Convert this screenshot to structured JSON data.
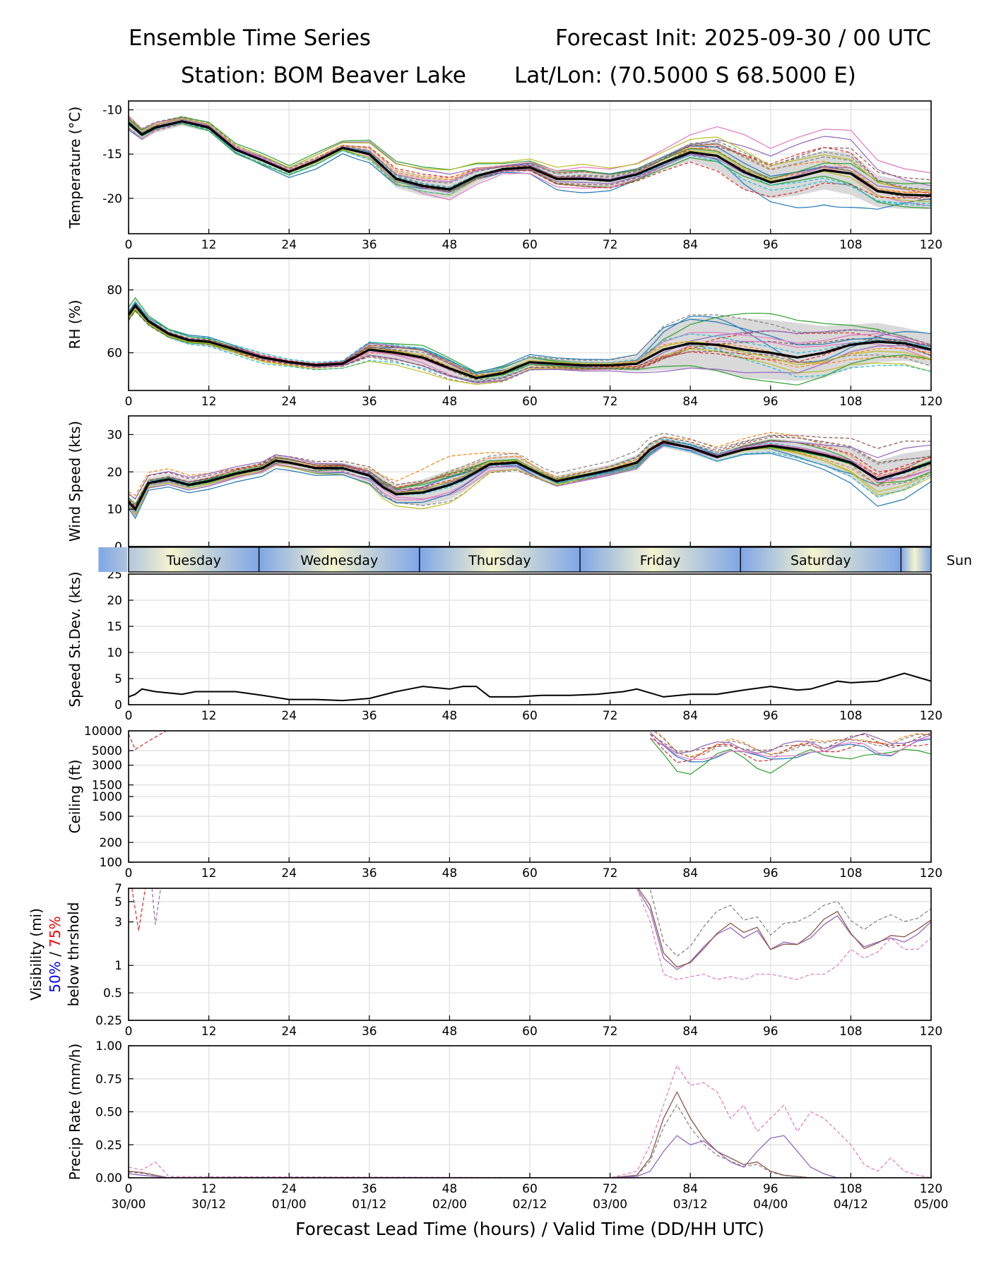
{
  "header": {
    "title_left": "Ensemble Time Series",
    "title_right": "Forecast Init: 2025-09-30 / 00 UTC",
    "station": "Station: BOM Beaver Lake",
    "latlon": "Lat/Lon: (70.5000 S 68.5000 E)"
  },
  "x_axis": {
    "label": "Forecast Lead Time (hours) / Valid Time (DD/HH UTC)",
    "hours": [
      0,
      12,
      24,
      36,
      48,
      60,
      72,
      84,
      96,
      108,
      120
    ],
    "valid_labels": [
      "30/00",
      "30/12",
      "01/00",
      "01/12",
      "02/00",
      "02/12",
      "03/00",
      "03/12",
      "04/00",
      "04/12",
      "05/00"
    ],
    "range": [
      0,
      120
    ]
  },
  "day_strip": {
    "days": [
      "Tuesday",
      "Wednesday",
      "Thursday",
      "Friday",
      "Saturday",
      "Sun"
    ],
    "boundaries_hours": [
      19.5,
      43.5,
      67.5,
      91.5,
      115.5
    ]
  },
  "colors": {
    "ensemble": [
      "#1f77b4",
      "#ff7f0e",
      "#2ca02c",
      "#d62728",
      "#9467bd",
      "#8c564b",
      "#e377c2",
      "#7f7f7f",
      "#bcbd22",
      "#17becf"
    ],
    "mean": "#000000",
    "spread": "#d9d9d9",
    "strip_blue": "#7fa6e6",
    "strip_cream": "#f5f3cf",
    "vis_50": "#0000ff",
    "vis_75": "#ff0000"
  },
  "chart_data": [
    {
      "type": "line",
      "ylabel": "Temperature (°C)",
      "ylim": [
        -24,
        -9
      ],
      "yticks": [
        -10,
        -15,
        -20
      ],
      "x": [
        0,
        2,
        4,
        8,
        12,
        16,
        20,
        24,
        28,
        32,
        36,
        40,
        44,
        48,
        52,
        56,
        60,
        64,
        68,
        72,
        76,
        80,
        84,
        88,
        92,
        96,
        100,
        104,
        108,
        112,
        116,
        120
      ],
      "mean": [
        -11.5,
        -12.8,
        -12.0,
        -11.3,
        -12.0,
        -14.5,
        -15.7,
        -17.0,
        -15.8,
        -14.3,
        -15.0,
        -17.8,
        -18.6,
        -19.0,
        -17.5,
        -16.7,
        -16.5,
        -17.8,
        -17.8,
        -18.0,
        -17.3,
        -16.0,
        -14.8,
        -15.2,
        -17.0,
        -18.2,
        -17.6,
        -16.8,
        -17.2,
        -19.2,
        -19.6,
        -19.7
      ],
      "spread_low": [
        -12.3,
        -13.5,
        -12.6,
        -11.8,
        -12.5,
        -15.0,
        -16.2,
        -17.4,
        -16.3,
        -14.7,
        -15.8,
        -18.8,
        -19.7,
        -20.2,
        -18.3,
        -17.1,
        -17.0,
        -18.5,
        -18.7,
        -18.8,
        -18.0,
        -16.8,
        -15.8,
        -16.8,
        -19.0,
        -20.0,
        -19.7,
        -19.0,
        -19.6,
        -21.0,
        -21.2,
        -21.2
      ],
      "spread_high": [
        -10.7,
        -12.1,
        -11.4,
        -10.8,
        -11.5,
        -14.0,
        -15.2,
        -16.6,
        -15.3,
        -13.9,
        -14.2,
        -16.8,
        -17.5,
        -17.8,
        -16.7,
        -16.3,
        -16.0,
        -17.1,
        -16.9,
        -17.2,
        -16.6,
        -15.2,
        -13.8,
        -13.6,
        -15.0,
        -16.4,
        -15.5,
        -14.6,
        -14.8,
        -17.4,
        -18.0,
        -18.2
      ]
    },
    {
      "type": "line",
      "ylabel": "RH (%)",
      "ylim": [
        48,
        90
      ],
      "yticks": [
        60,
        80
      ],
      "x": [
        0,
        1,
        3,
        6,
        9,
        12,
        16,
        20,
        24,
        28,
        32,
        36,
        40,
        44,
        48,
        52,
        56,
        60,
        64,
        68,
        72,
        76,
        80,
        84,
        88,
        92,
        96,
        100,
        104,
        108,
        112,
        116,
        120
      ],
      "mean": [
        72.0,
        75.0,
        70.0,
        66.0,
        64.0,
        63.5,
        61.0,
        58.5,
        57.0,
        56.0,
        56.5,
        61.0,
        60.0,
        58.5,
        55.0,
        52.0,
        53.5,
        57.0,
        56.5,
        56.0,
        56.0,
        56.5,
        61.0,
        63.0,
        62.5,
        61.0,
        60.0,
        58.5,
        60.0,
        62.5,
        63.5,
        63.0,
        61.0
      ],
      "spread_low": [
        70.0,
        73.0,
        68.5,
        64.5,
        62.5,
        62.0,
        59.5,
        57.0,
        56.0,
        55.0,
        55.5,
        58.5,
        57.5,
        55.5,
        52.5,
        50.5,
        51.5,
        55.0,
        55.0,
        54.5,
        54.5,
        54.0,
        54.5,
        55.0,
        54.0,
        52.0,
        51.5,
        51.0,
        52.0,
        55.0,
        57.0,
        57.5,
        56.0
      ],
      "spread_high": [
        74.0,
        77.0,
        71.5,
        67.5,
        65.5,
        65.0,
        62.5,
        60.0,
        58.0,
        57.0,
        57.5,
        63.5,
        62.5,
        61.5,
        57.5,
        53.5,
        55.5,
        59.0,
        58.0,
        57.5,
        57.5,
        59.0,
        67.5,
        71.0,
        71.5,
        71.0,
        70.5,
        69.5,
        68.5,
        69.0,
        69.5,
        68.0,
        66.0
      ]
    },
    {
      "type": "line",
      "ylabel": "Wind Speed (kts)",
      "ylim": [
        0,
        35
      ],
      "yticks": [
        0,
        10,
        20,
        30
      ],
      "x": [
        0,
        1,
        3,
        6,
        9,
        12,
        16,
        20,
        22,
        24,
        28,
        32,
        36,
        38,
        40,
        44,
        48,
        50,
        54,
        58,
        62,
        64,
        68,
        72,
        76,
        78,
        80,
        84,
        88,
        92,
        96,
        100,
        104,
        108,
        112,
        116,
        120
      ],
      "mean": [
        12.0,
        10.0,
        17.0,
        18.0,
        16.5,
        17.5,
        19.5,
        21.0,
        23.0,
        22.5,
        21.0,
        21.0,
        19.0,
        16.0,
        14.0,
        14.5,
        16.5,
        18.0,
        22.0,
        22.5,
        19.0,
        17.5,
        19.0,
        20.5,
        22.5,
        26.0,
        28.0,
        26.5,
        24.0,
        26.0,
        27.0,
        26.0,
        24.5,
        22.5,
        18.0,
        20.0,
        22.5
      ],
      "spread_low": [
        10.5,
        8.0,
        15.5,
        16.5,
        15.0,
        16.0,
        18.0,
        19.5,
        21.5,
        21.0,
        19.5,
        19.5,
        17.0,
        13.5,
        11.5,
        11.0,
        12.5,
        14.5,
        20.0,
        20.5,
        17.5,
        16.0,
        17.5,
        19.0,
        20.5,
        24.0,
        26.5,
        25.0,
        22.5,
        24.5,
        25.0,
        23.5,
        21.5,
        18.5,
        13.0,
        15.0,
        19.0
      ],
      "spread_high": [
        13.5,
        12.0,
        18.5,
        19.5,
        18.0,
        19.0,
        21.0,
        22.5,
        24.5,
        24.0,
        22.5,
        22.5,
        21.0,
        18.5,
        16.5,
        18.0,
        20.5,
        21.5,
        24.0,
        24.5,
        20.5,
        19.0,
        20.5,
        22.0,
        24.5,
        28.0,
        29.5,
        28.0,
        25.5,
        27.5,
        29.0,
        28.5,
        27.5,
        26.5,
        23.0,
        25.0,
        26.0
      ]
    },
    {
      "type": "line",
      "ylabel": "Speed St.Dev. (kts)",
      "ylim": [
        0,
        25
      ],
      "yticks": [
        0,
        5,
        10,
        15,
        20,
        25
      ],
      "x": [
        0,
        1,
        2,
        4,
        8,
        10,
        12,
        16,
        20,
        24,
        28,
        32,
        36,
        40,
        42,
        44,
        48,
        50,
        52,
        54,
        58,
        62,
        66,
        70,
        74,
        76,
        80,
        84,
        88,
        92,
        96,
        100,
        102,
        106,
        108,
        112,
        116,
        120
      ],
      "values": [
        1.5,
        2.0,
        3.0,
        2.5,
        2.0,
        2.5,
        2.5,
        2.5,
        1.8,
        1.0,
        1.0,
        0.8,
        1.2,
        2.5,
        3.0,
        3.5,
        3.0,
        3.5,
        3.5,
        1.5,
        1.5,
        1.8,
        1.8,
        2.0,
        2.5,
        3.0,
        1.5,
        2.0,
        2.0,
        2.8,
        3.5,
        2.8,
        3.0,
        4.5,
        4.2,
        4.5,
        6.0,
        4.5
      ]
    },
    {
      "type": "line",
      "ylabel": "Ceiling (ft)",
      "scale": "log",
      "ylim": [
        100,
        10000
      ],
      "yticks": [
        100,
        200,
        500,
        1000,
        1500,
        3000,
        5000,
        10000
      ],
      "x": [
        78,
        80,
        82,
        84,
        86,
        88,
        90,
        92,
        94,
        96,
        98,
        100,
        102,
        104,
        106,
        108,
        110,
        112,
        114,
        116,
        118,
        120
      ],
      "mean": [
        9000,
        6000,
        4000,
        3800,
        4500,
        5500,
        6000,
        5000,
        4200,
        4000,
        4800,
        5500,
        6000,
        5200,
        5800,
        6500,
        7000,
        6000,
        5500,
        6200,
        7000,
        7500
      ]
    },
    {
      "type": "line",
      "ylabel": "Visibility (mi)",
      "ylabel_line2_a": "50%",
      "ylabel_line2_sep": " / ",
      "ylabel_line2_b": "75%",
      "ylabel_line3": "below thrshold",
      "scale": "log",
      "ylim": [
        0.25,
        7
      ],
      "yticks": [
        0.25,
        0.5,
        1,
        3,
        5,
        7
      ],
      "x": [
        76,
        78,
        80,
        82,
        84,
        86,
        88,
        90,
        92,
        94,
        96,
        98,
        100,
        102,
        104,
        106,
        108,
        110,
        112,
        114,
        116,
        118,
        120
      ],
      "p50": [
        7,
        4,
        1.2,
        0.9,
        1.1,
        1.6,
        2.2,
        2.6,
        2.0,
        2.4,
        1.5,
        1.8,
        1.7,
        2.0,
        2.8,
        3.5,
        2.2,
        1.6,
        1.8,
        2.0,
        1.8,
        2.2,
        3.0
      ],
      "p75": [
        7,
        3.0,
        0.8,
        0.7,
        0.75,
        0.8,
        0.7,
        0.75,
        0.7,
        0.8,
        0.8,
        0.75,
        0.7,
        0.8,
        0.8,
        1.0,
        1.5,
        1.2,
        1.4,
        2.0,
        1.5,
        1.5,
        2.0
      ]
    },
    {
      "type": "line",
      "ylabel": "Precip Rate (mm/h)",
      "ylim": [
        0,
        1.0
      ],
      "yticks": [
        0.0,
        0.25,
        0.5,
        0.75,
        1.0
      ],
      "ytick_labels": [
        "0.00",
        "0.25",
        "0.50",
        "0.75",
        "1.00"
      ],
      "x": [
        0,
        2,
        4,
        6,
        72,
        76,
        78,
        80,
        82,
        84,
        86,
        88,
        90,
        92,
        94,
        96,
        98,
        100,
        102,
        104,
        106,
        108,
        110,
        112,
        114,
        116,
        118,
        120
      ],
      "max_member": [
        0.08,
        0.06,
        0.12,
        0.01,
        0.0,
        0.05,
        0.25,
        0.55,
        0.85,
        0.7,
        0.72,
        0.65,
        0.45,
        0.55,
        0.35,
        0.45,
        0.55,
        0.35,
        0.5,
        0.45,
        0.35,
        0.25,
        0.1,
        0.05,
        0.15,
        0.05,
        0.02,
        0.0
      ],
      "second_member": [
        0.05,
        0.04,
        0.02,
        0.0,
        0.0,
        0.02,
        0.15,
        0.45,
        0.65,
        0.45,
        0.3,
        0.2,
        0.15,
        0.1,
        0.12,
        0.05,
        0.02,
        0.01,
        0.0,
        0.0,
        0.0,
        0.0,
        0.0,
        0.0,
        0.0,
        0.0,
        0.0,
        0.0
      ],
      "third_member": [
        0.03,
        0.02,
        0.01,
        0.0,
        0.0,
        0.01,
        0.05,
        0.2,
        0.32,
        0.25,
        0.28,
        0.2,
        0.12,
        0.08,
        0.2,
        0.3,
        0.32,
        0.2,
        0.08,
        0.03,
        0.0,
        0.0,
        0.0,
        0.0,
        0.0,
        0.0,
        0.0,
        0.0
      ]
    }
  ]
}
